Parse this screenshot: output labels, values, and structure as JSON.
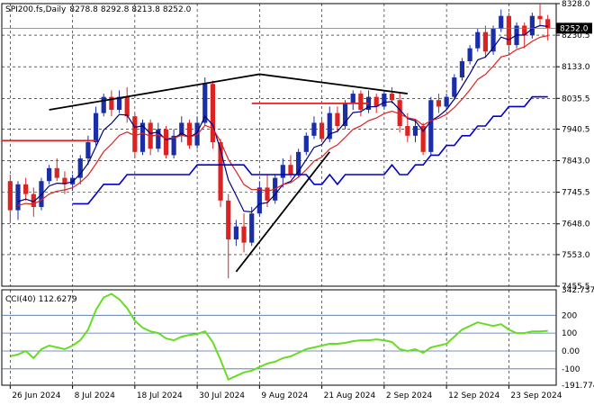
{
  "chart_data": [
    {
      "type": "candlestick",
      "symbol": "SPI200.fs",
      "timeframe": "Daily",
      "ohlc_header": [
        "8278.8",
        "8292.8",
        "8213.8",
        "8252.0"
      ],
      "ylim": [
        7455.5,
        8328.0
      ],
      "y_ticks": [
        "8328.0",
        "8230.5",
        "8133.0",
        "8035.5",
        "7940.5",
        "7843.0",
        "7745.5",
        "7648.0",
        "7553.0",
        "7455.5"
      ],
      "current_price_label": "8252.0",
      "x_tick_labels": [
        "26 Jun 2024",
        "8 Jul 2024",
        "18 Jul 2024",
        "30 Jul 2024",
        "9 Aug 2024",
        "21 Aug 2024",
        "2 Sep 2024",
        "12 Sep 2024",
        "23 Sep 2024"
      ],
      "x_tick_index": [
        0,
        8,
        16,
        24,
        32,
        40,
        48,
        56,
        64
      ],
      "candles": [
        [
          7780,
          7800,
          7650,
          7690
        ],
        [
          7690,
          7780,
          7660,
          7770
        ],
        [
          7770,
          7790,
          7720,
          7740
        ],
        [
          7740,
          7760,
          7670,
          7700
        ],
        [
          7700,
          7790,
          7690,
          7780
        ],
        [
          7780,
          7830,
          7770,
          7820
        ],
        [
          7820,
          7850,
          7780,
          7790
        ],
        [
          7790,
          7810,
          7740,
          7770
        ],
        [
          7770,
          7800,
          7750,
          7790
        ],
        [
          7790,
          7860,
          7770,
          7850
        ],
        [
          7850,
          7920,
          7830,
          7900
        ],
        [
          7900,
          8010,
          7890,
          7990
        ],
        [
          7990,
          8050,
          7980,
          8040
        ],
        [
          8040,
          8060,
          7980,
          8000
        ],
        [
          8000,
          8060,
          7990,
          8040
        ],
        [
          8040,
          8070,
          7960,
          7980
        ],
        [
          7980,
          7990,
          7850,
          7870
        ],
        [
          7870,
          7970,
          7860,
          7960
        ],
        [
          7960,
          7970,
          7860,
          7880
        ],
        [
          7880,
          7960,
          7870,
          7940
        ],
        [
          7940,
          7950,
          7850,
          7860
        ],
        [
          7860,
          7940,
          7850,
          7920
        ],
        [
          7920,
          7980,
          7900,
          7960
        ],
        [
          7960,
          7970,
          7880,
          7890
        ],
        [
          7890,
          7980,
          7880,
          7960
        ],
        [
          7960,
          8100,
          7950,
          8080
        ],
        [
          8080,
          8090,
          7880,
          7900
        ],
        [
          7900,
          7910,
          7700,
          7720
        ],
        [
          7720,
          7740,
          7480,
          7600
        ],
        [
          7600,
          7660,
          7580,
          7640
        ],
        [
          7640,
          7680,
          7560,
          7590
        ],
        [
          7590,
          7700,
          7580,
          7680
        ],
        [
          7680,
          7780,
          7670,
          7760
        ],
        [
          7760,
          7800,
          7700,
          7720
        ],
        [
          7720,
          7800,
          7710,
          7790
        ],
        [
          7790,
          7850,
          7760,
          7830
        ],
        [
          7830,
          7860,
          7790,
          7800
        ],
        [
          7800,
          7880,
          7790,
          7870
        ],
        [
          7870,
          7930,
          7860,
          7920
        ],
        [
          7920,
          7980,
          7910,
          7960
        ],
        [
          7960,
          7970,
          7900,
          7910
        ],
        [
          7910,
          8010,
          7900,
          7990
        ],
        [
          7990,
          8010,
          7930,
          7950
        ],
        [
          7950,
          8030,
          7940,
          8020
        ],
        [
          8020,
          8060,
          8000,
          8050
        ],
        [
          8050,
          8060,
          7980,
          8000
        ],
        [
          8000,
          8060,
          7990,
          8040
        ],
        [
          8040,
          8050,
          7990,
          8010
        ],
        [
          8010,
          8060,
          8000,
          8050
        ],
        [
          8050,
          8070,
          8020,
          8030
        ],
        [
          8030,
          8050,
          7930,
          7950
        ],
        [
          7950,
          7990,
          7900,
          7920
        ],
        [
          7920,
          7970,
          7900,
          7950
        ],
        [
          7950,
          7960,
          7860,
          7870
        ],
        [
          7870,
          8040,
          7860,
          8030
        ],
        [
          8030,
          8050,
          7990,
          8010
        ],
        [
          8010,
          8050,
          8000,
          8040
        ],
        [
          8040,
          8110,
          8030,
          8100
        ],
        [
          8100,
          8160,
          8090,
          8150
        ],
        [
          8150,
          8200,
          8140,
          8190
        ],
        [
          8190,
          8250,
          8180,
          8240
        ],
        [
          8240,
          8260,
          8160,
          8180
        ],
        [
          8180,
          8260,
          8170,
          8250
        ],
        [
          8250,
          8310,
          8240,
          8290
        ],
        [
          8290,
          8300,
          8180,
          8200
        ],
        [
          8200,
          8270,
          8190,
          8260
        ],
        [
          8260,
          8270,
          8190,
          8230
        ],
        [
          8230,
          8300,
          8220,
          8290
        ],
        [
          8290,
          8330,
          8260,
          8280
        ],
        [
          8280,
          8293,
          8214,
          8252
        ]
      ],
      "indicator": {
        "name": "CCI(40)",
        "value_label": "112.6279",
        "ylim": [
          -191.7744,
          342.7377
        ],
        "y_tick_labels": [
          "342.7377",
          "200",
          "100",
          "0.00",
          "-100",
          "-191.7744"
        ],
        "levels": [
          200,
          100,
          0,
          -100
        ],
        "line_color": "#66dd22",
        "values": [
          -30,
          -20,
          0,
          -40,
          10,
          30,
          20,
          10,
          30,
          60,
          120,
          230,
          300,
          320,
          290,
          240,
          170,
          130,
          110,
          100,
          70,
          60,
          80,
          90,
          95,
          110,
          50,
          -50,
          -160,
          -140,
          -120,
          -110,
          -90,
          -70,
          -60,
          -40,
          -30,
          -10,
          10,
          20,
          30,
          40,
          40,
          45,
          55,
          60,
          60,
          65,
          60,
          50,
          10,
          0,
          10,
          -10,
          20,
          30,
          40,
          80,
          120,
          140,
          160,
          150,
          140,
          150,
          120,
          100,
          100,
          110,
          110,
          112.6
        ]
      },
      "colors": {
        "bull": "#1a2ea8",
        "bear": "#dd2222",
        "ma_black": "#000080",
        "ma_red": "#dd2222",
        "ma_blue": "#0000cc",
        "trend": "#000000",
        "hline": "#dd2222"
      }
    }
  ]
}
